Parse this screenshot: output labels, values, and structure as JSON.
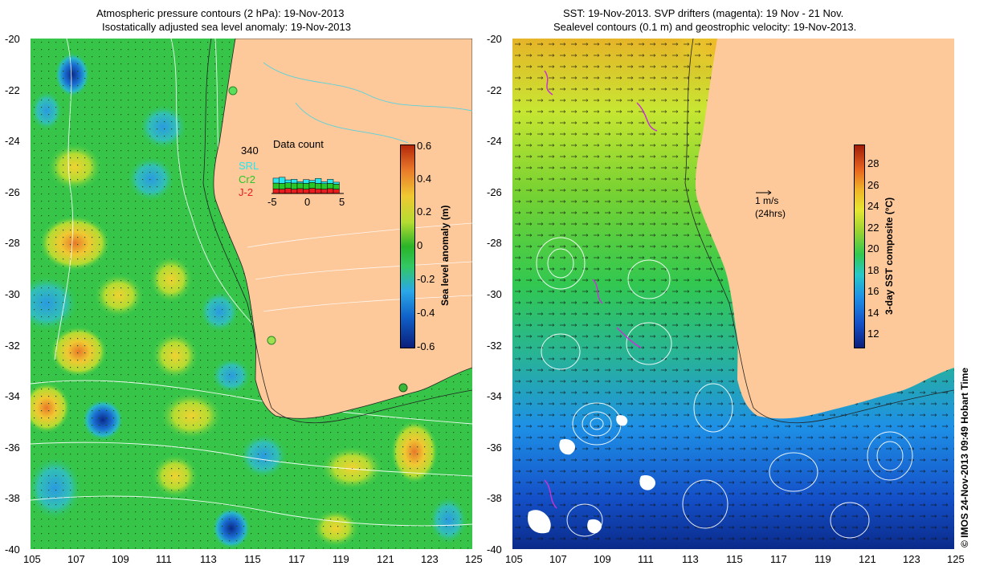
{
  "left_panel": {
    "title_line1": "Atmospheric pressure contours (2 hPa): 19-Nov-2013",
    "title_line2": "Isostatically adjusted sea level anomaly: 19-Nov-2013",
    "colorbar": {
      "label": "Sea level anomaly (m)",
      "ticks": [
        "0.6",
        "0.4",
        "0.2",
        "0",
        "-0.2",
        "-0.4",
        "-0.6"
      ],
      "colors": [
        "#0a1f7a",
        "#1060c8",
        "#2aa8e8",
        "#32c864",
        "#2ab428",
        "#b4dc32",
        "#f0c832",
        "#e8782a",
        "#b4280a"
      ]
    },
    "data_count": {
      "title": "Data count",
      "max_label": "340",
      "series": [
        {
          "name": "SRL",
          "color": "#28e6f0"
        },
        {
          "name": "Cr2",
          "color": "#28c828"
        },
        {
          "name": "J-2",
          "color": "#e81e1e"
        }
      ],
      "x_ticks": [
        "-5",
        "0",
        "5"
      ],
      "bars": [
        {
          "j2": 0.32,
          "cr2": 0.4,
          "srl": 0.34
        },
        {
          "j2": 0.3,
          "cr2": 0.4,
          "srl": 0.42
        },
        {
          "j2": 0.36,
          "cr2": 0.38,
          "srl": 0.2
        },
        {
          "j2": 0.3,
          "cr2": 0.42,
          "srl": 0.26
        },
        {
          "j2": 0.34,
          "cr2": 0.38,
          "srl": 0.1
        },
        {
          "j2": 0.3,
          "cr2": 0.4,
          "srl": 0.26
        },
        {
          "j2": 0.36,
          "cr2": 0.4,
          "srl": 0.14
        },
        {
          "j2": 0.32,
          "cr2": 0.38,
          "srl": 0.34
        },
        {
          "j2": 0.3,
          "cr2": 0.38,
          "srl": 0.14
        },
        {
          "j2": 0.34,
          "cr2": 0.36,
          "srl": 0.28
        },
        {
          "j2": 0.3,
          "cr2": 0.34,
          "srl": 0.14
        }
      ]
    }
  },
  "right_panel": {
    "title_line1": "SST: 19-Nov-2013. SVP drifters (magenta): 19 Nov - 21 Nov.",
    "title_line2": "Sealevel contours (0.1 m) and geostrophic velocity: 19-Nov-2013.",
    "scale_arrow": {
      "label": "1 m/s",
      "sublabel": "(24hrs)"
    },
    "colorbar": {
      "label": "3-day SST composite (°C)",
      "ticks": [
        "28",
        "26",
        "24",
        "22",
        "20",
        "18",
        "16",
        "14",
        "12"
      ],
      "colors": [
        "#0a1f7a",
        "#1450c8",
        "#1e90e6",
        "#28c8c8",
        "#32c850",
        "#96d232",
        "#e6e632",
        "#f0b428",
        "#e8641e",
        "#a01e0a"
      ]
    }
  },
  "axes": {
    "lat_ticks": [
      "-20",
      "-22",
      "-24",
      "-26",
      "-28",
      "-30",
      "-32",
      "-34",
      "-36",
      "-38",
      "-40"
    ],
    "lon_ticks": [
      "105",
      "107",
      "109",
      "111",
      "113",
      "115",
      "117",
      "119",
      "121",
      "123",
      "125"
    ]
  },
  "land_color": "#fdc89a",
  "credit": "© IMOS 24-Nov-2013 09:49 Hobart Time"
}
